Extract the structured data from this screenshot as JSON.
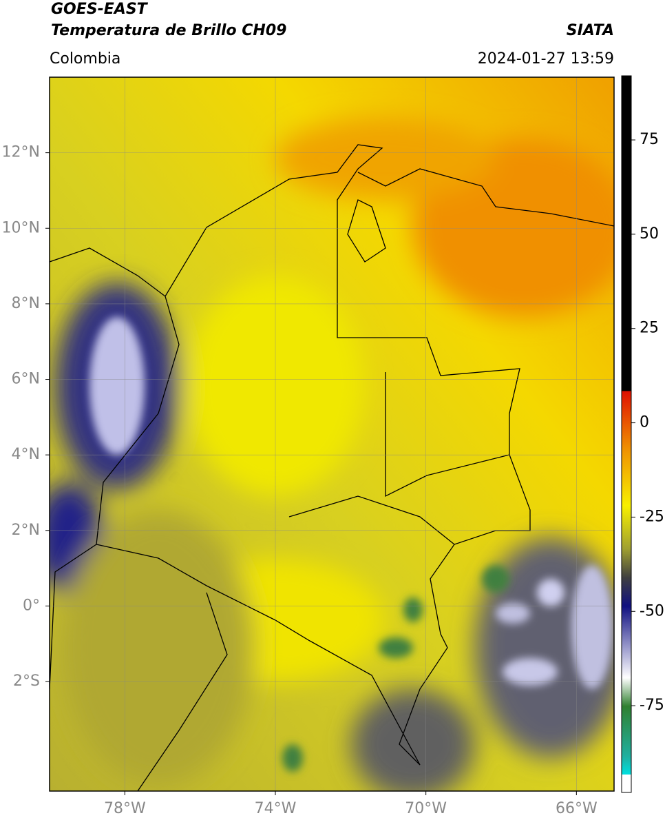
{
  "header": {
    "source": "GOES-EAST",
    "product": "Temperatura de Brillo CH09",
    "agency": "SIATA",
    "region": "Colombia",
    "timestamp": "2024-01-27 13:59"
  },
  "map": {
    "lonlim": [
      -80,
      -65
    ],
    "latlim": [
      -4.9,
      14
    ],
    "lonticks": [
      {
        "value": -78,
        "label": "78°W"
      },
      {
        "value": -74,
        "label": "74°W"
      },
      {
        "value": -70,
        "label": "70°W"
      },
      {
        "value": -66,
        "label": "66°W"
      }
    ],
    "latticks": [
      {
        "value": -2,
        "label": "2°S"
      },
      {
        "value": 0,
        "label": "0°"
      },
      {
        "value": 2,
        "label": "2°N"
      },
      {
        "value": 4,
        "label": "4°N"
      },
      {
        "value": 6,
        "label": "6°N"
      },
      {
        "value": 8,
        "label": "8°N"
      },
      {
        "value": 10,
        "label": "10°N"
      },
      {
        "value": 12,
        "label": "12°N"
      }
    ]
  },
  "colorbar": {
    "lim": [
      -98,
      92
    ],
    "ticks": [
      75,
      50,
      25,
      0,
      -25,
      -50,
      -75
    ]
  }
}
